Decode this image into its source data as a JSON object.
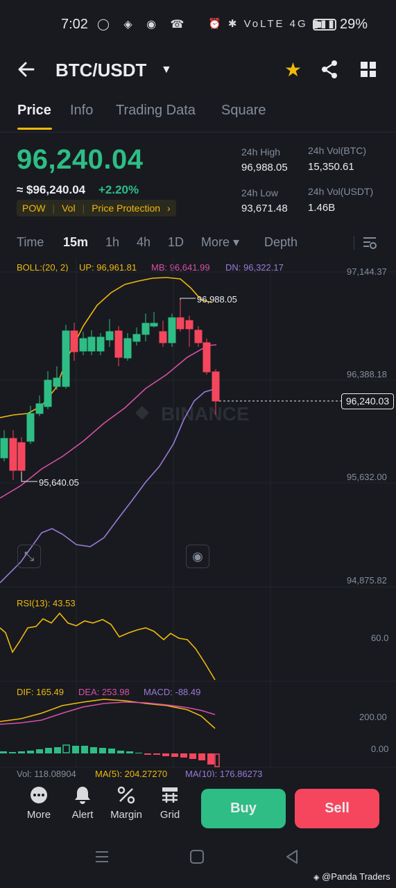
{
  "status_bar": {
    "time": "7:02",
    "battery": "29%",
    "left_icons": "◯ ◈ ◉ ☎",
    "right_icons": "⏰ ✱ VoLTE 4G ▮▮▮"
  },
  "header": {
    "pair": "BTC/USDT",
    "back_icon": "back-arrow-icon",
    "favorite_icon": "star-icon",
    "share_icon": "share-icon",
    "layout_icon": "grid-icon"
  },
  "tabs": [
    "Price",
    "Info",
    "Trading Data",
    "Square"
  ],
  "price": {
    "last": "96,240.04",
    "fiat": "≈ $96,240.04",
    "change": "+2.20%",
    "tags": [
      "POW",
      "Vol",
      "Price Protection"
    ],
    "tags_chevron": "›"
  },
  "stats": {
    "high_label": "24h High",
    "high": "96,988.05",
    "low_label": "24h Low",
    "low": "93,671.48",
    "vol_btc_label": "24h Vol(BTC)",
    "vol_btc": "15,350.61",
    "vol_usdt_label": "24h Vol(USDT)",
    "vol_usdt": "1.46B"
  },
  "intervals": {
    "time": "Time",
    "m15": "15m",
    "h1": "1h",
    "h4": "4h",
    "d1": "1D",
    "more": "More ▾",
    "depth": "Depth"
  },
  "indicators": {
    "boll": "BOLL:(20, 2)",
    "up": "UP: 96,961.81",
    "mb": "MB: 96,641.99",
    "dn": "DN: 96,322.17",
    "rsi": "RSI(13): 43.53",
    "dif": "DIF: 165.49",
    "dea": "DEA: 253.98",
    "macd": "MACD: -88.49",
    "vol": "Vol: 118.08904",
    "ma5": "MA(5): 204.27270",
    "ma10": "MA(10): 176.86273"
  },
  "chart_labels": {
    "axis": [
      "97,144.37",
      "96,388.18",
      "95,632.00",
      "94,875.82"
    ],
    "high_marker": "96,988.05",
    "low_marker": "95,640.05",
    "current": "96,240.03",
    "rsi_axis": "60.0",
    "macd_axis": [
      "200.00",
      "0.00"
    ],
    "watermark": "BINANCE"
  },
  "chart_data": {
    "type": "candlestick",
    "interval": "15m",
    "y_range": [
      94875.82,
      97144.37
    ],
    "candles_approx": [
      {
        "o": 95850,
        "c": 95950,
        "color": "up"
      },
      {
        "o": 95950,
        "c": 95760,
        "color": "down"
      },
      {
        "o": 95780,
        "c": 95950,
        "color": "up"
      },
      {
        "o": 95950,
        "c": 96100,
        "color": "up"
      },
      {
        "o": 96100,
        "c": 96150,
        "color": "up"
      },
      {
        "o": 96150,
        "c": 96300,
        "color": "up"
      },
      {
        "o": 96300,
        "c": 96350,
        "color": "up"
      },
      {
        "o": 96350,
        "c": 96650,
        "color": "up"
      },
      {
        "o": 96650,
        "c": 96500,
        "color": "down"
      },
      {
        "o": 96560,
        "c": 96700,
        "color": "up"
      },
      {
        "o": 96700,
        "c": 96600,
        "color": "down"
      },
      {
        "o": 96600,
        "c": 96650,
        "color": "up"
      },
      {
        "o": 96600,
        "c": 96700,
        "color": "up"
      },
      {
        "o": 96750,
        "c": 96700,
        "color": "down"
      },
      {
        "o": 96700,
        "c": 96650,
        "color": "up"
      },
      {
        "o": 96730,
        "c": 96550,
        "color": "down"
      },
      {
        "o": 96550,
        "c": 96660,
        "color": "up"
      },
      {
        "o": 96660,
        "c": 96720,
        "color": "up"
      },
      {
        "o": 96680,
        "c": 96730,
        "color": "up"
      },
      {
        "o": 96760,
        "c": 96720,
        "color": "up"
      },
      {
        "o": 96740,
        "c": 96760,
        "color": "down"
      },
      {
        "o": 96700,
        "c": 96620,
        "color": "down"
      },
      {
        "o": 96630,
        "c": 96780,
        "color": "up"
      },
      {
        "o": 96780,
        "c": 96700,
        "color": "down"
      },
      {
        "o": 96700,
        "c": 96720,
        "color": "up"
      },
      {
        "o": 96700,
        "c": 96620,
        "color": "down"
      },
      {
        "o": 96620,
        "c": 96420,
        "color": "down"
      },
      {
        "o": 96420,
        "c": 96240,
        "color": "down"
      }
    ]
  },
  "actions": [
    {
      "label": "More",
      "icon": "more-icon"
    },
    {
      "label": "Alert",
      "icon": "bell-icon"
    },
    {
      "label": "Margin",
      "icon": "margin-icon"
    },
    {
      "label": "Grid",
      "icon": "grid-bot-icon"
    }
  ],
  "buttons": {
    "buy": "Buy",
    "sell": "Sell"
  },
  "watermark": "@Panda Traders",
  "colors": {
    "up": "#2ebd85",
    "down": "#f6465d",
    "accent": "#f0b90b",
    "bg": "#181a20"
  }
}
